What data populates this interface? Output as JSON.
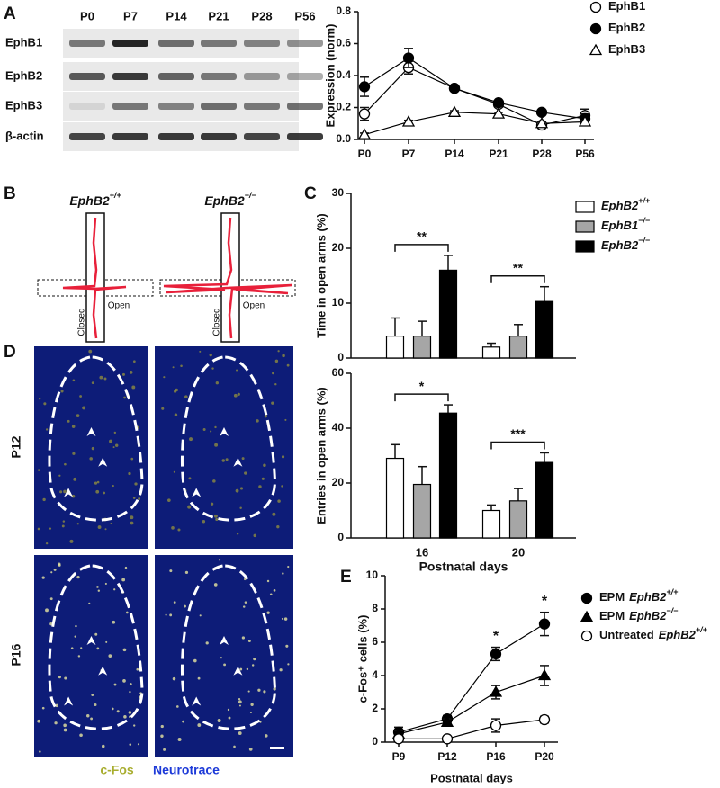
{
  "panel_labels": [
    "A",
    "B",
    "C",
    "D",
    "E"
  ],
  "blot": {
    "lanes": [
      "P0",
      "P7",
      "P14",
      "P21",
      "P28",
      "P56"
    ],
    "rows": [
      "EphB1",
      "EphB2",
      "EphB3",
      "β-actin"
    ]
  },
  "maze": {
    "genotypes": [
      {
        "gene": "EphB2",
        "genotype": "+/+"
      },
      {
        "gene": "EphB2",
        "genotype": "−/−"
      }
    ],
    "closed": "Closed",
    "open": "Open"
  },
  "images": {
    "rows": [
      "P12",
      "P16"
    ],
    "stains": [
      {
        "text": "c-Fos",
        "color": "#a8ad2e"
      },
      {
        "text": "Neurotrace",
        "color": "#1d3ad8"
      }
    ]
  },
  "chart_data": [
    {
      "type": "line",
      "ylabel": "Expression (norm)",
      "categories": [
        "P0",
        "P7",
        "P14",
        "P21",
        "P28",
        "P56"
      ],
      "ylim": [
        0,
        0.8
      ],
      "yticks": [
        {
          "value": 0,
          "label": "0.0"
        },
        {
          "value": 0.2,
          "label": "0.2"
        },
        {
          "value": 0.4,
          "label": "0.4"
        },
        {
          "value": 0.6,
          "label": "0.6"
        },
        {
          "value": 0.8,
          "label": "0.8"
        }
      ],
      "series": [
        {
          "name": "EphB1",
          "color": "#000000",
          "marker": "open-circle",
          "values": [
            0.16,
            0.45,
            0.32,
            0.22,
            0.09,
            0.15
          ],
          "errors": [
            0.04,
            0.04,
            0.01,
            0.01,
            0.02,
            0.04
          ]
        },
        {
          "name": "EphB2",
          "color": "#000000",
          "marker": "filled-circle",
          "values": [
            0.33,
            0.51,
            0.32,
            0.23,
            0.17,
            0.13
          ],
          "errors": [
            0.06,
            0.06,
            0.01,
            0.01,
            0.01,
            0.03
          ]
        },
        {
          "name": "EphB3",
          "color": "#000000",
          "marker": "open-triangle",
          "values": [
            0.03,
            0.11,
            0.17,
            0.16,
            0.1,
            0.11
          ],
          "errors": [
            0.01,
            0.01,
            0.01,
            0.01,
            0.01,
            0.01
          ]
        }
      ]
    },
    {
      "type": "bar",
      "ylabel": "Time in open arms (%)",
      "categories": [
        null,
        null
      ],
      "ylim": [
        0,
        30
      ],
      "yticks": [
        0,
        10,
        20,
        30
      ],
      "annotations": [
        "**",
        "**"
      ],
      "series": [
        {
          "name": "EphB2",
          "genotype": "+/+",
          "color": "#ffffff",
          "values": [
            4,
            2
          ],
          "errors": [
            3.3,
            0.7
          ]
        },
        {
          "name": "EphB1",
          "genotype": "−/−",
          "color": "#a6a6a6",
          "values": [
            4,
            4
          ],
          "errors": [
            2.7,
            2.1
          ]
        },
        {
          "name": "EphB2",
          "genotype": "−/−",
          "color": "#000000",
          "values": [
            16,
            10.3
          ],
          "errors": [
            2.7,
            2.7
          ]
        }
      ]
    },
    {
      "type": "bar",
      "ylabel": "Entries in open arms (%)",
      "xlabel": "Postnatal days",
      "categories": [
        "16",
        "20"
      ],
      "ylim": [
        0,
        60
      ],
      "yticks": [
        0,
        20,
        40,
        60
      ],
      "annotations": [
        "*",
        "***"
      ],
      "series": [
        {
          "color": "#ffffff",
          "values": [
            29,
            10
          ],
          "errors": [
            5,
            2
          ]
        },
        {
          "color": "#a6a6a6",
          "values": [
            19.5,
            13.5
          ],
          "errors": [
            6.5,
            4.5
          ]
        },
        {
          "color": "#000000",
          "values": [
            45.5,
            27.5
          ],
          "errors": [
            3,
            3.5
          ]
        }
      ]
    },
    {
      "type": "line",
      "ylabel": "c-Fos⁺ cells (%)",
      "xlabel": "Postnatal days",
      "categories": [
        "P9",
        "P12",
        "P16",
        "P20"
      ],
      "ylim": [
        0,
        10
      ],
      "yticks": [
        0,
        2,
        4,
        6,
        8,
        10
      ],
      "annotations": [
        {
          "x": "P16",
          "text": "*"
        },
        {
          "x": "P20",
          "text": "*"
        }
      ],
      "series": [
        {
          "name": "EPM",
          "gene": "EphB2",
          "genotype": "+/+",
          "color": "#000000",
          "marker": "filled-circle",
          "values": [
            0.6,
            1.4,
            5.3,
            7.1
          ],
          "errors": [
            0.3,
            0.2,
            0.4,
            0.7
          ]
        },
        {
          "name": "EPM",
          "gene": "EphB2",
          "genotype": "−/−",
          "color": "#000000",
          "marker": "filled-triangle",
          "values": [
            0.5,
            1.2,
            3.0,
            4.0
          ],
          "errors": [
            0.2,
            0.2,
            0.4,
            0.6
          ]
        },
        {
          "name": "Untreated",
          "gene": "EphB2",
          "genotype": "+/+",
          "color": "#000000",
          "marker": "open-circle",
          "values": [
            0.2,
            0.2,
            1.0,
            1.35
          ],
          "errors": [
            0.1,
            0.1,
            0.4,
            0.2
          ]
        }
      ]
    }
  ]
}
